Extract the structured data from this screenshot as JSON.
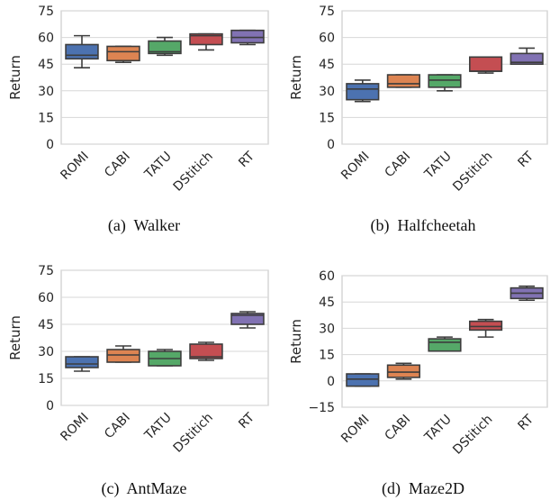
{
  "figure": {
    "panels_caption_prefix": [
      "(a)",
      "(b)",
      "(c)",
      "(d)"
    ]
  },
  "chart_data": [
    {
      "type": "box",
      "caption": "(a)  Walker",
      "title": "",
      "xlabel": "",
      "ylabel": "Return",
      "ylim": [
        0,
        75
      ],
      "yticks": [
        0,
        15,
        30,
        45,
        60,
        75
      ],
      "categories": [
        "ROMI",
        "CABI",
        "TATU",
        "DStitich",
        "RT"
      ],
      "colors": [
        "#4c72b0",
        "#dd8452",
        "#55a868",
        "#c44e52",
        "#8172b3"
      ],
      "boxes": [
        {
          "min": 43,
          "q1": 48,
          "median": 50,
          "q3": 56,
          "max": 61
        },
        {
          "min": 46,
          "q1": 47,
          "median": 52,
          "q3": 55,
          "max": 55
        },
        {
          "min": 50,
          "q1": 51,
          "median": 52,
          "q3": 58,
          "max": 60
        },
        {
          "min": 53,
          "q1": 56,
          "median": 61,
          "q3": 62,
          "max": 62
        },
        {
          "min": 56,
          "q1": 57,
          "median": 60,
          "q3": 64,
          "max": 64
        }
      ]
    },
    {
      "type": "box",
      "caption": "(b)  Halfcheetah",
      "title": "",
      "xlabel": "",
      "ylabel": "Return",
      "ylim": [
        0,
        75
      ],
      "yticks": [
        0,
        15,
        30,
        45,
        60,
        75
      ],
      "categories": [
        "ROMI",
        "CABI",
        "TATU",
        "DStitich",
        "RT"
      ],
      "colors": [
        "#4c72b0",
        "#dd8452",
        "#55a868",
        "#c44e52",
        "#8172b3"
      ],
      "boxes": [
        {
          "min": 24,
          "q1": 25,
          "median": 31,
          "q3": 34,
          "max": 36
        },
        {
          "min": 32,
          "q1": 32,
          "median": 34,
          "q3": 39,
          "max": 39
        },
        {
          "min": 30,
          "q1": 32,
          "median": 36,
          "q3": 39,
          "max": 39
        },
        {
          "min": 40,
          "q1": 41,
          "median": 41,
          "q3": 49,
          "max": 49
        },
        {
          "min": 45,
          "q1": 45,
          "median": 46,
          "q3": 51,
          "max": 54
        }
      ]
    },
    {
      "type": "box",
      "caption": "(c)  AntMaze",
      "title": "",
      "xlabel": "",
      "ylabel": "Return",
      "ylim": [
        0,
        75
      ],
      "yticks": [
        0,
        15,
        30,
        45,
        60,
        75
      ],
      "categories": [
        "ROMI",
        "CABI",
        "TATU",
        "DStitich",
        "RT"
      ],
      "colors": [
        "#4c72b0",
        "#dd8452",
        "#55a868",
        "#c44e52",
        "#8172b3"
      ],
      "boxes": [
        {
          "min": 19,
          "q1": 21,
          "median": 23,
          "q3": 27,
          "max": 27
        },
        {
          "min": 24,
          "q1": 24,
          "median": 28,
          "q3": 31,
          "max": 33
        },
        {
          "min": 22,
          "q1": 22,
          "median": 26,
          "q3": 30,
          "max": 31
        },
        {
          "min": 25,
          "q1": 26,
          "median": 27,
          "q3": 34,
          "max": 35
        },
        {
          "min": 43,
          "q1": 45,
          "median": 50,
          "q3": 51,
          "max": 52
        }
      ]
    },
    {
      "type": "box",
      "caption": "(d)  Maze2D",
      "title": "",
      "xlabel": "",
      "ylabel": "Return",
      "ylim": [
        -15,
        60
      ],
      "yticks": [
        -15,
        0,
        15,
        30,
        45,
        60
      ],
      "categories": [
        "ROMI",
        "CABI",
        "TATU",
        "DStitich",
        "RT"
      ],
      "colors": [
        "#4c72b0",
        "#dd8452",
        "#55a868",
        "#c44e52",
        "#8172b3"
      ],
      "boxes": [
        {
          "min": -3,
          "q1": -3,
          "median": 1,
          "q3": 4,
          "max": 4
        },
        {
          "min": 1,
          "q1": 2,
          "median": 5,
          "q3": 9,
          "max": 10
        },
        {
          "min": 17,
          "q1": 17,
          "median": 22,
          "q3": 24,
          "max": 25
        },
        {
          "min": 25,
          "q1": 29,
          "median": 31,
          "q3": 34,
          "max": 35
        },
        {
          "min": 46,
          "q1": 47,
          "median": 50,
          "q3": 53,
          "max": 54
        }
      ]
    }
  ]
}
